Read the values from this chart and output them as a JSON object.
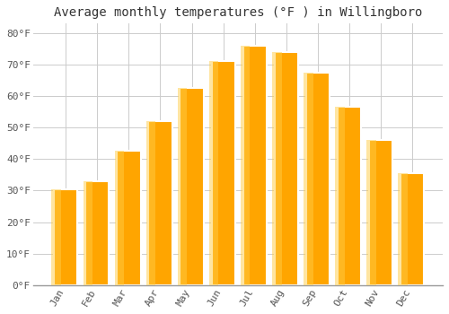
{
  "title": "Average monthly temperatures (°F ) in Willingboro",
  "months": [
    "Jan",
    "Feb",
    "Mar",
    "Apr",
    "May",
    "Jun",
    "Jul",
    "Aug",
    "Sep",
    "Oct",
    "Nov",
    "Dec"
  ],
  "values": [
    30.5,
    33.0,
    42.5,
    52.0,
    62.5,
    71.0,
    76.0,
    74.0,
    67.5,
    56.5,
    46.0,
    35.5
  ],
  "bar_color": "#FFA500",
  "bar_edge_color": "#FFFFFF",
  "background_color": "#FFFFFF",
  "grid_color": "#CCCCCC",
  "ylim": [
    0,
    83
  ],
  "yticks": [
    0,
    10,
    20,
    30,
    40,
    50,
    60,
    70,
    80
  ],
  "title_fontsize": 10,
  "tick_fontsize": 8,
  "font_family": "monospace"
}
